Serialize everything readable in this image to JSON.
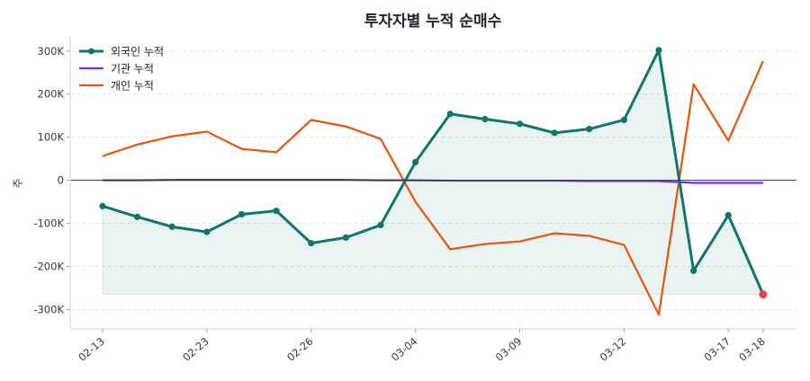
{
  "chart_data": {
    "type": "line",
    "title": "투자자별 누적 순매수",
    "ylabel": "주",
    "xlabel": "",
    "ylim": [
      -345000,
      335000
    ],
    "xlim": [
      -0.93,
      19.96
    ],
    "yticks": [
      -300000,
      -200000,
      -100000,
      0,
      100000,
      200000,
      300000
    ],
    "ytick_labels": [
      "-300K",
      "-200K",
      "-100K",
      "0",
      "100K",
      "200K",
      "300K"
    ],
    "xtick_indices": [
      0,
      3,
      6,
      9,
      12,
      15,
      18,
      19
    ],
    "xtick_labels": [
      "02-13",
      "02-23",
      "02-26",
      "03-04",
      "03-09",
      "03-12",
      "03-17",
      "03-18"
    ],
    "grid": "horizontal dashed",
    "legend_position": "top-left",
    "series": [
      {
        "name": "외국인 누적",
        "color": "#0f766e",
        "markers": true,
        "fill_to_min": true,
        "values": [
          -60000,
          -85000,
          -108000,
          -120000,
          -79000,
          -71000,
          -146000,
          -133000,
          -104000,
          42000,
          154000,
          142000,
          131000,
          110000,
          119000,
          140000,
          302000,
          -210000,
          -81000,
          -265000
        ]
      },
      {
        "name": "기관 누적",
        "color": "#7c2ae8",
        "markers": false,
        "values": [
          0,
          0,
          1000,
          1000,
          1000,
          1000,
          1000,
          1000,
          0,
          0,
          -1000,
          -1000,
          -1000,
          -1000,
          -2000,
          -2000,
          -2000,
          -6000,
          -6000,
          -6000
        ]
      },
      {
        "name": "개인 누적",
        "color": "#e8540a",
        "markers": false,
        "values": [
          56000,
          83000,
          102000,
          113000,
          73000,
          65000,
          140000,
          125000,
          96000,
          -50000,
          -160000,
          -148000,
          -142000,
          -123000,
          -129000,
          -150000,
          -312000,
          223000,
          92000,
          277000
        ]
      }
    ],
    "highlight": {
      "series": "외국인 누적",
      "index": 19,
      "color": "#ef4444"
    }
  }
}
